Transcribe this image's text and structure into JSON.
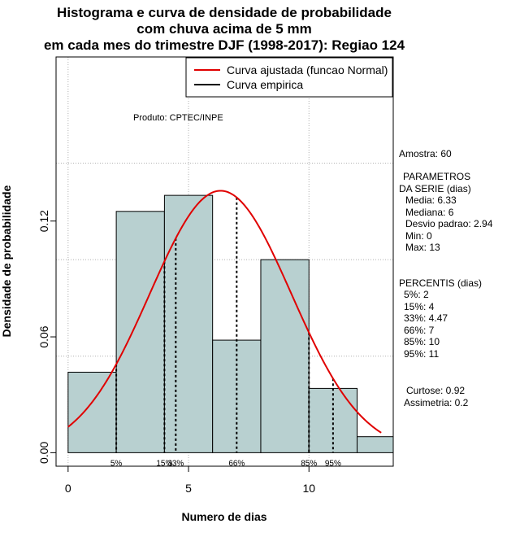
{
  "chart_data": {
    "type": "histogram",
    "title_lines": [
      "Histograma e curva de densidade de probabilidade",
      "com chuva acima de 5 mm",
      "em cada mes do trimestre DJF (1998-2017): Regiao 124"
    ],
    "xlabel": "Numero de dias",
    "ylabel": "Densidade de probabilidade",
    "xlim": [
      -0.5,
      13.5
    ],
    "ylim": [
      -0.007,
      0.205
    ],
    "x_ticks": [
      0,
      5,
      10
    ],
    "y_ticks": [
      0.0,
      0.06,
      0.12
    ],
    "y_tick_labels": [
      "0.00",
      "0.06",
      "0.12"
    ],
    "grid_x": [
      0,
      5,
      10
    ],
    "grid_y": [
      0.05,
      0.1,
      0.15
    ],
    "bins": [
      {
        "from": 0,
        "to": 2,
        "density": 0.0417
      },
      {
        "from": 2,
        "to": 4,
        "density": 0.125
      },
      {
        "from": 4,
        "to": 6,
        "density": 0.1333
      },
      {
        "from": 6,
        "to": 8,
        "density": 0.0583
      },
      {
        "from": 8,
        "to": 10,
        "density": 0.1
      },
      {
        "from": 10,
        "to": 12,
        "density": 0.0333
      },
      {
        "from": 12,
        "to": 14,
        "density": 0.0083
      }
    ],
    "normal_fit": {
      "mean": 6.33,
      "sd": 2.94,
      "x_from": 0,
      "x_to": 13
    },
    "percentile_lines": [
      {
        "label": "5%",
        "x": 2
      },
      {
        "label": "15%",
        "x": 4
      },
      {
        "label": "33%",
        "x": 4.47
      },
      {
        "label": "66%",
        "x": 7
      },
      {
        "label": "85%",
        "x": 10
      },
      {
        "label": "95%",
        "x": 11
      }
    ],
    "legend": [
      {
        "label": "Curva ajustada (funcao Normal)",
        "color": "#e00000"
      },
      {
        "label": "Curva empirica",
        "color": "#000000"
      }
    ],
    "product_note": "Produto: CPTEC/INPE",
    "bar_color": "#b8d0d0",
    "curve_color": "#e00000"
  },
  "stats": {
    "amostra": "Amostra: 60",
    "parametros_title_1": "PARAMETROS",
    "parametros_title_2": "DA SERIE (dias)",
    "parametros": [
      "Media: 6.33",
      "Mediana: 6",
      "Desvio padrao: 2.94",
      "Min: 0",
      "Max: 13"
    ],
    "percentis_title": "PERCENTIS (dias)",
    "percentis": [
      "5%: 2",
      "15%: 4",
      "33%: 4.47",
      "66%: 7",
      "85%: 10",
      "95%: 11"
    ],
    "curtose": "Curtose: 0.92",
    "assimetria": "Assimetria: 0.2"
  }
}
